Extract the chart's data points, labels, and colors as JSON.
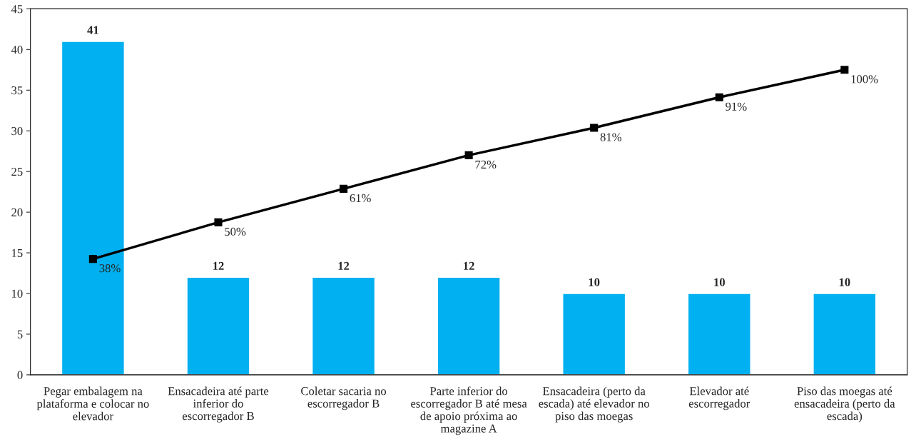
{
  "chart_data": {
    "type": "bar",
    "categories": [
      "Pegar embalagem na plataforma e colocar no elevador",
      "Ensacadeira até parte inferior do escorregador B",
      "Coletar sacaria no escorregador B",
      "Parte inferior do escorregador B até mesa de apoio próxima ao magazine A",
      "Ensacadeira (perto da escada) até elevador no piso das moegas",
      "Elevador até escorregador",
      "Piso das moegas até ensacadeira (perto da escada)"
    ],
    "series": [
      {
        "color": "#00b0f0",
        "values": [
          41,
          12,
          12,
          12,
          10,
          10,
          10
        ]
      },
      {
        "type": "line",
        "axis": "y2",
        "color": "#000000",
        "marker": "square",
        "values": [
          38,
          50,
          61,
          72,
          81,
          91,
          100
        ],
        "value_labels": [
          "38%",
          "50%",
          "61%",
          "72%",
          "81%",
          "91%",
          "100%"
        ]
      }
    ],
    "ylim": [
      0,
      45
    ],
    "yticks": [
      0,
      5,
      10,
      15,
      20,
      25,
      30,
      35,
      40,
      45
    ],
    "y2lim": [
      0,
      120
    ],
    "data_labels": true,
    "grid": false,
    "legend": false
  }
}
